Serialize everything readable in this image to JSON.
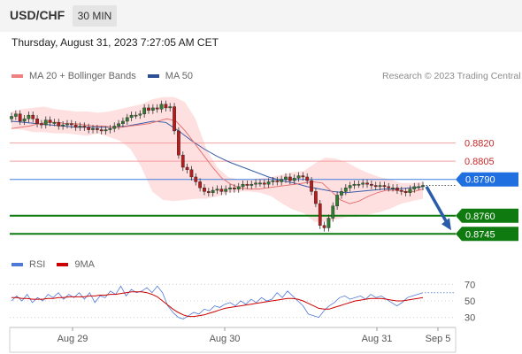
{
  "header": {
    "symbol": "USD/CHF",
    "timeframe_button": "30 MIN"
  },
  "datetime": "Thursday, August 31, 2023 7:27:05 AM CET",
  "legend": {
    "ma20_label": "MA 20 + Bollinger Bands",
    "ma50_label": "MA 50",
    "ma20_color": "#f08080",
    "ma50_color": "#2c4f93"
  },
  "research": "Research © 2023 Trading Central",
  "colors": {
    "candle_up": "#2f7d2f",
    "candle_down": "#b71c1c",
    "bollinger": "#ffd5d5",
    "support": "#0f7a0f",
    "resistance": "#f3a0a0",
    "pivot": "#3f7fdf"
  },
  "chart_data": [
    {
      "type": "candlestick",
      "ylim": [
        0.8735,
        0.8865
      ],
      "x_ticks": [
        "Aug 29",
        "Aug 30",
        "Aug 31",
        "Sep 5"
      ],
      "close": [
        0.8842,
        0.8844,
        0.8838,
        0.884,
        0.8843,
        0.884,
        0.8836,
        0.8835,
        0.8839,
        0.8837,
        0.8837,
        0.8834,
        0.8835,
        0.8836,
        0.8835,
        0.8833,
        0.8834,
        0.8833,
        0.8831,
        0.8832,
        0.8831,
        0.883,
        0.8831,
        0.8832,
        0.8834,
        0.8836,
        0.8838,
        0.8841,
        0.8843,
        0.8843,
        0.8844,
        0.8849,
        0.8847,
        0.8849,
        0.8848,
        0.8852,
        0.8849,
        0.885,
        0.883,
        0.881,
        0.88,
        0.8798,
        0.8792,
        0.8788,
        0.8783,
        0.878,
        0.8779,
        0.8781,
        0.8782,
        0.878,
        0.8782,
        0.8783,
        0.8782,
        0.8784,
        0.8786,
        0.8785,
        0.8786,
        0.8787,
        0.8787,
        0.8786,
        0.8788,
        0.8789,
        0.8788,
        0.879,
        0.8792,
        0.8789,
        0.8791,
        0.8793,
        0.8792,
        0.8789,
        0.878,
        0.877,
        0.8752,
        0.875,
        0.8758,
        0.8768,
        0.8777,
        0.878,
        0.8783,
        0.8785,
        0.8786,
        0.8786,
        0.8787,
        0.8786,
        0.8785,
        0.8784,
        0.8785,
        0.8784,
        0.8783,
        0.8783,
        0.8781,
        0.878,
        0.8779,
        0.8782,
        0.8784,
        0.8784,
        0.8785
      ],
      "ma20": [
        0.8832,
        0.8833,
        0.8834,
        0.8836,
        0.8837,
        0.8837,
        0.8836,
        0.8836,
        0.8835,
        0.8834,
        0.8834,
        0.8833,
        0.8833,
        0.8834,
        0.8835,
        0.8836,
        0.8838,
        0.884,
        0.8838,
        0.883,
        0.882,
        0.881,
        0.88,
        0.8791,
        0.8786,
        0.8783,
        0.8782,
        0.8782,
        0.8783,
        0.8784,
        0.8785,
        0.8786,
        0.8787,
        0.8788,
        0.8787,
        0.878,
        0.8773,
        0.877,
        0.8772,
        0.8776,
        0.8779,
        0.8781,
        0.8781,
        0.878,
        0.878,
        0.8782
      ],
      "ma50": [
        0.8838,
        0.8837,
        0.8836,
        0.8835,
        0.8834,
        0.8833,
        0.8833,
        0.8833,
        0.8833,
        0.8834,
        0.8836,
        0.8838,
        0.8837,
        0.883,
        0.8822,
        0.8815,
        0.8809,
        0.8804,
        0.88,
        0.8796,
        0.8792,
        0.8789,
        0.8787,
        0.8784,
        0.8782,
        0.878,
        0.8779,
        0.878,
        0.8781,
        0.8782,
        0.8782,
        0.8783,
        0.8784
      ],
      "bb_upper": [
        0.8846,
        0.8848,
        0.8849,
        0.885,
        0.8848,
        0.8847,
        0.8846,
        0.8846,
        0.8845,
        0.8846,
        0.8848,
        0.885,
        0.8852,
        0.8856,
        0.8858,
        0.8858,
        0.8854,
        0.884,
        0.8815,
        0.88,
        0.8792,
        0.879,
        0.879,
        0.8791,
        0.8792,
        0.8794,
        0.8796,
        0.8797,
        0.8803,
        0.8808,
        0.8807,
        0.8804,
        0.8799,
        0.8795,
        0.8792,
        0.879,
        0.8787,
        0.8787,
        0.8788
      ],
      "bb_lower": [
        0.8832,
        0.8831,
        0.8829,
        0.8829,
        0.8828,
        0.8828,
        0.8827,
        0.8826,
        0.8828,
        0.8825,
        0.8822,
        0.8815,
        0.88,
        0.878,
        0.8773,
        0.8772,
        0.8773,
        0.8774,
        0.8774,
        0.8776,
        0.8779,
        0.878,
        0.878,
        0.8779,
        0.8776,
        0.877,
        0.8765,
        0.8762,
        0.8755,
        0.8755,
        0.8757,
        0.8759,
        0.8759,
        0.8761,
        0.8763,
        0.8766,
        0.877,
        0.8772,
        0.8774
      ],
      "levels": [
        {
          "value": 0.882,
          "label": "0.8820",
          "kind": "resistance"
        },
        {
          "value": 0.8805,
          "label": "0.8805",
          "kind": "resistance"
        },
        {
          "value": 0.879,
          "label": "0.8790",
          "kind": "pivot"
        },
        {
          "value": 0.876,
          "label": "0.8760",
          "kind": "support"
        },
        {
          "value": 0.8745,
          "label": "0.8745",
          "kind": "support"
        }
      ],
      "arrow": {
        "from": 0.8784,
        "to": 0.8748,
        "direction": "down"
      },
      "current_price": 0.8785
    },
    {
      "type": "line",
      "title": "",
      "legend": [
        "RSI",
        "9MA"
      ],
      "y_ticks": [
        70,
        50,
        30
      ],
      "ylim": [
        22,
        78
      ],
      "rsi_color": "#4f79d6",
      "ma_color": "#cc0000",
      "rsi": [
        50,
        56,
        50,
        58,
        48,
        54,
        50,
        58,
        54,
        60,
        52,
        58,
        54,
        60,
        52,
        60,
        48,
        56,
        54,
        62,
        58,
        68,
        56,
        64,
        60,
        62,
        66,
        60,
        68,
        60,
        44,
        36,
        30,
        28,
        32,
        36,
        34,
        40,
        38,
        44,
        42,
        46,
        48,
        44,
        50,
        46,
        52,
        48,
        54,
        50,
        52,
        60,
        54,
        62,
        56,
        50,
        44,
        34,
        32,
        30,
        38,
        44,
        48,
        54,
        56,
        52,
        54,
        56,
        52,
        58,
        54,
        56,
        52,
        48,
        44,
        48,
        54,
        56,
        58,
        60
      ],
      "rsi9": [
        54,
        54,
        53,
        53,
        52,
        52,
        52,
        53,
        53,
        54,
        54,
        55,
        55,
        55,
        55,
        56,
        56,
        57,
        57,
        58,
        58,
        59,
        60,
        61,
        61,
        61,
        60,
        58,
        55,
        50,
        45,
        40,
        36,
        33,
        31,
        31,
        32,
        33,
        35,
        37,
        39,
        41,
        42,
        43,
        44,
        45,
        46,
        47,
        48,
        49,
        50,
        51,
        52,
        53,
        53,
        52,
        50,
        47,
        44,
        41,
        40,
        40,
        42,
        44,
        46,
        48,
        50,
        51,
        52,
        53,
        53,
        53,
        52,
        51,
        50,
        50,
        51,
        52,
        53,
        54
      ]
    }
  ]
}
